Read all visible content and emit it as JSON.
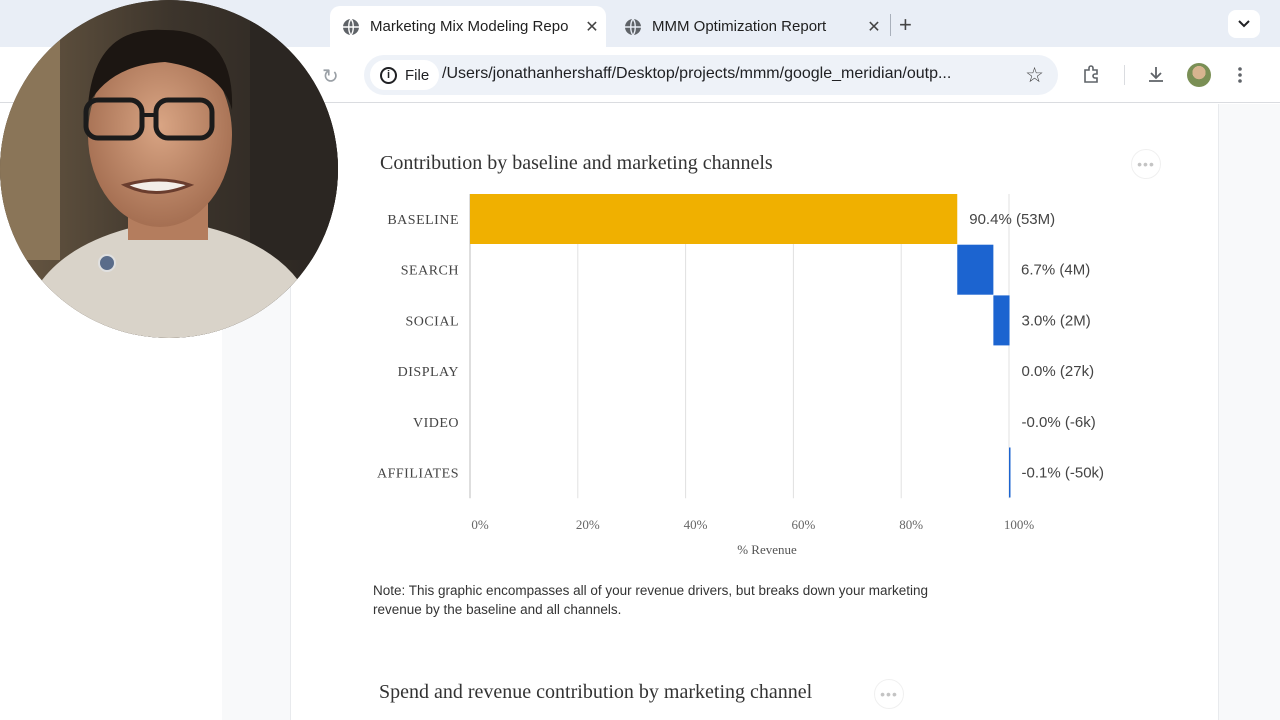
{
  "browser": {
    "tabs": [
      {
        "title": "Marketing Mix Modeling Repo",
        "active": true
      },
      {
        "title": "MMM Optimization Report",
        "active": false
      }
    ],
    "address": {
      "chip_label": "File",
      "url": "/Users/jonathanhershaff/Desktop/projects/mmm/google_meridian/outp..."
    }
  },
  "report": {
    "chart_title": "Contribution by baseline and marketing channels",
    "note": "Note: This graphic encompasses all of your revenue drivers, but breaks down your marketing revenue by the baseline and all channels.",
    "next_section_title": "Spend and revenue contribution by marketing channel"
  },
  "chart_data": {
    "type": "bar",
    "orientation": "horizontal-waterfall",
    "categories": [
      "BASELINE",
      "SEARCH",
      "SOCIAL",
      "DISPLAY",
      "VIDEO",
      "AFFILIATES"
    ],
    "values": [
      90.4,
      6.7,
      3.0,
      0.0,
      -0.0,
      -0.1
    ],
    "value_labels": [
      "90.4% (53M)",
      "6.7% (4M)",
      "3.0% (2M)",
      "0.0% (27k)",
      "-0.0% (-6k)",
      "-0.1% (-50k)"
    ],
    "colors": [
      "#f0b000",
      "#1c64d0",
      "#1c64d0",
      "#1c64d0",
      "#1c64d0",
      "#1c64d0"
    ],
    "xticks": [
      "0%",
      "20%",
      "40%",
      "60%",
      "80%",
      "100%"
    ],
    "xlabel": "% Revenue",
    "xlim": [
      0,
      100
    ],
    "grid": true
  },
  "colors": {
    "baseline": "#f0b000",
    "channel": "#1c64d0"
  }
}
